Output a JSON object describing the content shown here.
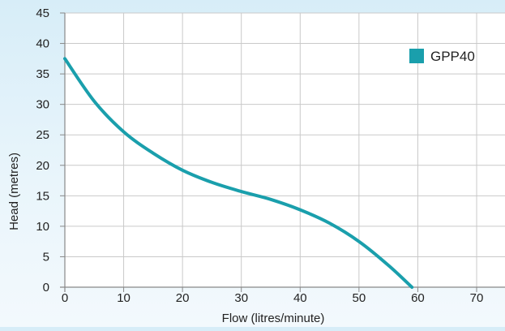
{
  "chart_data": {
    "type": "line",
    "title": "",
    "xlabel": "Flow (litres/minute)",
    "ylabel": "Head (metres)",
    "xlim": [
      0,
      70
    ],
    "ylim": [
      0,
      45
    ],
    "x_ticks": [
      0,
      10,
      20,
      30,
      40,
      50,
      60,
      70
    ],
    "y_ticks": [
      0,
      5,
      10,
      15,
      20,
      25,
      30,
      35,
      40,
      45
    ],
    "grid": true,
    "legend_position": "top-right",
    "series": [
      {
        "name": "GPP40",
        "color": "#1a9fac",
        "x": [
          0,
          5,
          10,
          15,
          20,
          25,
          30,
          35,
          40,
          45,
          50,
          55,
          59
        ],
        "y": [
          37.5,
          30.5,
          25.5,
          22.0,
          19.2,
          17.2,
          15.7,
          14.4,
          12.7,
          10.5,
          7.5,
          3.6,
          0
        ]
      }
    ]
  }
}
